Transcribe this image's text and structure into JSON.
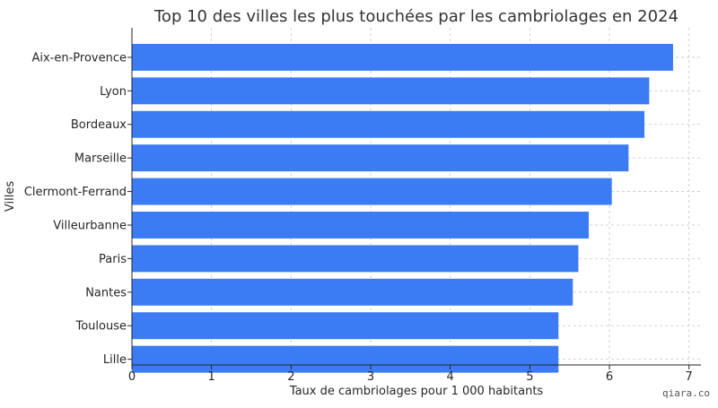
{
  "chart_data": {
    "type": "bar",
    "orientation": "horizontal",
    "title": "Top 10 des villes les plus touchées par les cambriolages en 2024",
    "xlabel": "Taux de cambriolages pour 1 000 habitants",
    "ylabel": "Villes",
    "categories": [
      "Aix-en-Provence",
      "Lyon",
      "Bordeaux",
      "Marseille",
      "Clermont-Ferrand",
      "Villeurbanne",
      "Paris",
      "Nantes",
      "Toulouse",
      "Lille"
    ],
    "values": [
      6.8,
      6.5,
      6.44,
      6.24,
      6.03,
      5.74,
      5.61,
      5.54,
      5.36,
      5.36
    ],
    "xlim": [
      0,
      7.15
    ],
    "xticks": [
      "0",
      "1",
      "2",
      "3",
      "4",
      "5",
      "6",
      "7"
    ],
    "grid": true,
    "bar_color": "#3b7cf4"
  },
  "watermark": "qiara.co"
}
